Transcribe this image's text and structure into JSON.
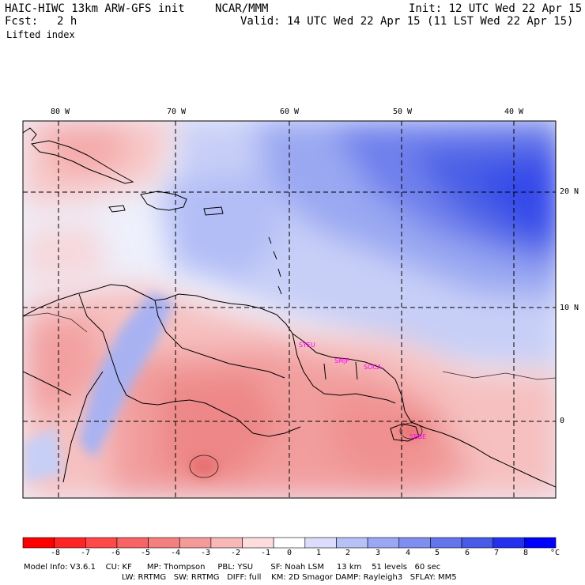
{
  "header": {
    "model": "HAIC-HIWC 13km ARW-GFS init",
    "org": "NCAR/MMM",
    "init": "Init: 12 UTC Wed 22 Apr 15",
    "fcst_label": "Fcst:",
    "fcst_value": "2 h",
    "valid": "Valid: 14 UTC Wed 22 Apr 15 (11 LST Wed 22 Apr 15)",
    "field": "Lifted index"
  },
  "map": {
    "longitude_labels": [
      "80 W",
      "70 W",
      "60 W",
      "50 W",
      "40 W"
    ],
    "latitude_labels": [
      "20 N",
      "10 N",
      "0"
    ],
    "stations": [
      "SYEU",
      "SMJP",
      "SOCA",
      "SBBE"
    ]
  },
  "colorbar": {
    "labels": [
      "-8",
      "-7",
      "-6",
      "-5",
      "-4",
      "-3",
      "-2",
      "-1",
      "0",
      "1",
      "2",
      "3",
      "4",
      "5",
      "6",
      "7",
      "8"
    ],
    "unit": "°C",
    "colors": [
      "#ff0000",
      "#ff2424",
      "#ff4848",
      "#f86464",
      "#f47f7f",
      "#f49a9a",
      "#f8b8b8",
      "#fcdcdc",
      "#ffffff",
      "#dcdcfc",
      "#b8c0f8",
      "#9aa8f4",
      "#7f8ef0",
      "#6474ec",
      "#485ae8",
      "#2430ee",
      "#0000ff"
    ]
  },
  "footer": {
    "line1": "Model Info: V3.6.1    CU: KF      MP: Thompson     PBL: YSU       SF: Noah LSM     13 km    51 levels   60 sec",
    "line2": "LW: RRTMG   SW: RRTMG   DIFF: full    KM: 2D Smagor DAMP: Rayleigh3   SFLAY: MM5"
  }
}
